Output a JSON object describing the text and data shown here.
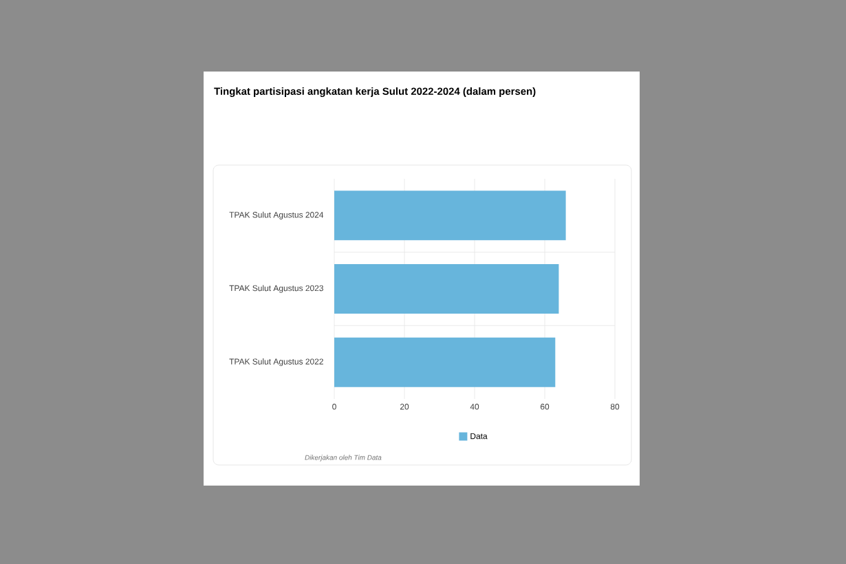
{
  "chart_data": {
    "type": "bar",
    "orientation": "horizontal",
    "title": "Tingkat partisipasi angkatan kerja Sulut 2022-2024 (dalam persen)",
    "categories": [
      "TPAK Sulut Agustus 2024",
      "TPAK Sulut Agustus 2023",
      "TPAK Sulut Agustus 2022"
    ],
    "series": [
      {
        "name": "Data",
        "color": "#67b5dc",
        "values": [
          66,
          64,
          63
        ]
      }
    ],
    "xlim": [
      0,
      80
    ],
    "xticks": [
      0,
      20,
      40,
      60,
      80
    ],
    "grid": true,
    "legend": "bottom",
    "annotations": [
      "Dikerjakan oleh Tim Data"
    ]
  }
}
